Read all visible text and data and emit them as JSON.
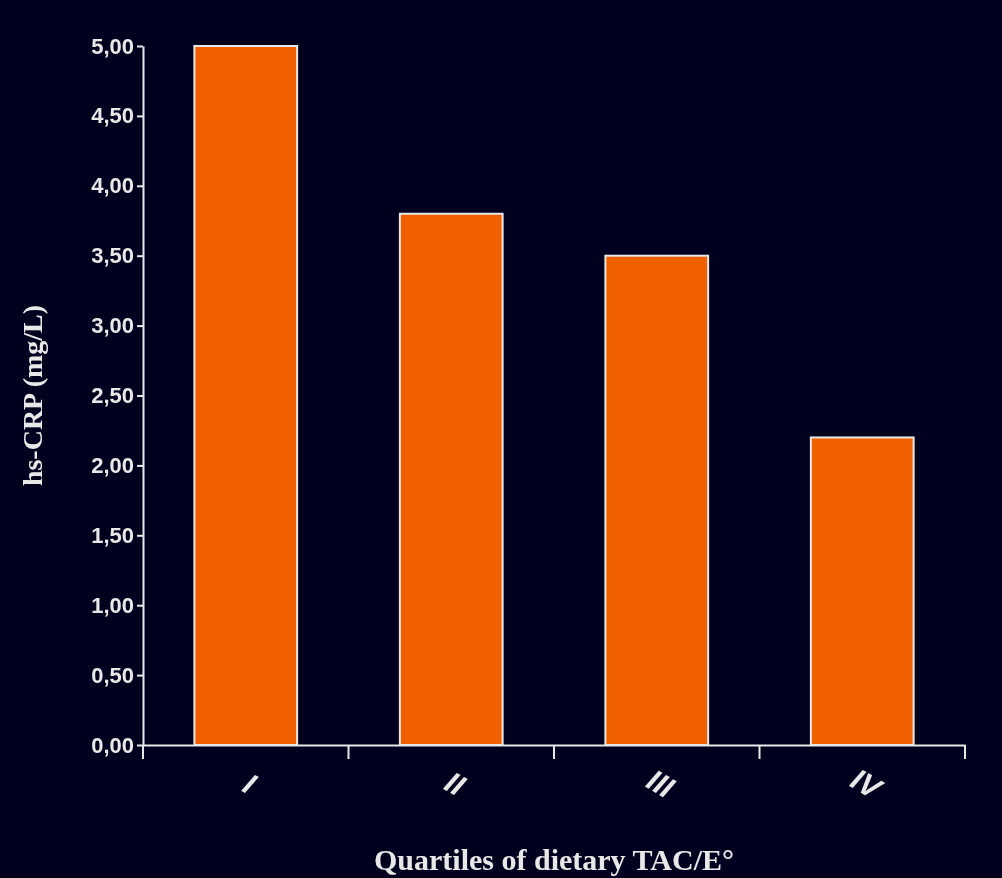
{
  "chart_data": {
    "type": "bar",
    "xlabel": "Quartiles of dietary TAC/E°",
    "ylabel": "hs-CRP (mg/L)",
    "categories": [
      "I",
      "II",
      "III",
      "IV"
    ],
    "values": [
      5.0,
      3.8,
      3.5,
      2.2
    ],
    "color": "#f06000",
    "ylim": [
      0,
      5
    ],
    "yticks": [
      {
        "value": 0,
        "label": "0,00"
      },
      {
        "value": 0.5,
        "label": "0,50"
      },
      {
        "value": 1,
        "label": "1,00"
      },
      {
        "value": 1.5,
        "label": "1,50"
      },
      {
        "value": 2,
        "label": "2,00"
      },
      {
        "value": 2.5,
        "label": "2,50"
      },
      {
        "value": 3,
        "label": "3,00"
      },
      {
        "value": 3.5,
        "label": "3,50"
      },
      {
        "value": 4,
        "label": "4,00"
      },
      {
        "value": 4.5,
        "label": "4,50"
      },
      {
        "value": 5,
        "label": "5,00"
      }
    ]
  }
}
